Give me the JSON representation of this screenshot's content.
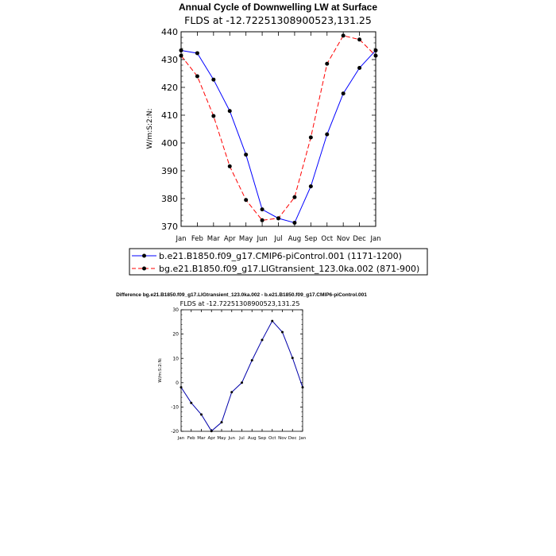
{
  "chart_data": [
    {
      "type": "line",
      "title": "Annual Cycle of Downwelling LW at Surface",
      "subtitle": "FLDS at -12.72251308900523,131.25",
      "ylabel": "W/m:S:2:N:",
      "xlabel": "",
      "categories": [
        "Jan",
        "Feb",
        "Mar",
        "Apr",
        "May",
        "Jun",
        "Jul",
        "Aug",
        "Sep",
        "Oct",
        "Nov",
        "Dec",
        "Jan"
      ],
      "ylim": [
        370,
        440
      ],
      "yticks": [
        370,
        380,
        390,
        400,
        410,
        420,
        430,
        440
      ],
      "legend_position": "bottom",
      "series": [
        {
          "name": "b.e21.B1850.f09_g17.CMIP6-piControl.001 (1171-1200)",
          "color": "#0000ff",
          "dash": "solid",
          "values": [
            433.3,
            432.3,
            422.8,
            411.5,
            395.8,
            376.1,
            372.9,
            371.3,
            384.4,
            403.1,
            417.8,
            427.0,
            433.3
          ]
        },
        {
          "name": "bg.e21.B1850.f09_g17.LIGtransient_123.0ka.002 (871-900)",
          "color": "#ff0000",
          "dash": "dashed",
          "values": [
            431.4,
            424.0,
            409.7,
            391.6,
            379.5,
            372.2,
            372.9,
            380.5,
            402.0,
            428.5,
            438.6,
            437.2,
            431.4
          ]
        }
      ]
    },
    {
      "type": "line",
      "title": "Difference bg.e21.B1850.f09_g17.LIGtransient_123.0ka.002 - b.e21.B1850.f09_g17.CMIP6-piControl.001",
      "subtitle": "FLDS at -12.72251308900523,131.25",
      "ylabel": "W/m:S:2:N:",
      "xlabel": "",
      "categories": [
        "Jan",
        "Feb",
        "Mar",
        "Apr",
        "May",
        "Jun",
        "Jul",
        "Aug",
        "Sep",
        "Oct",
        "Nov",
        "Dec",
        "Jan"
      ],
      "ylim": [
        -20,
        30
      ],
      "yticks": [
        -20,
        -10,
        0,
        10,
        20,
        30
      ],
      "series": [
        {
          "color": "#0000aa",
          "values": [
            -1.9,
            -8.3,
            -13.1,
            -19.9,
            -16.3,
            -3.9,
            0.0,
            9.2,
            17.6,
            25.4,
            20.8,
            10.2,
            -1.9
          ]
        }
      ]
    }
  ]
}
